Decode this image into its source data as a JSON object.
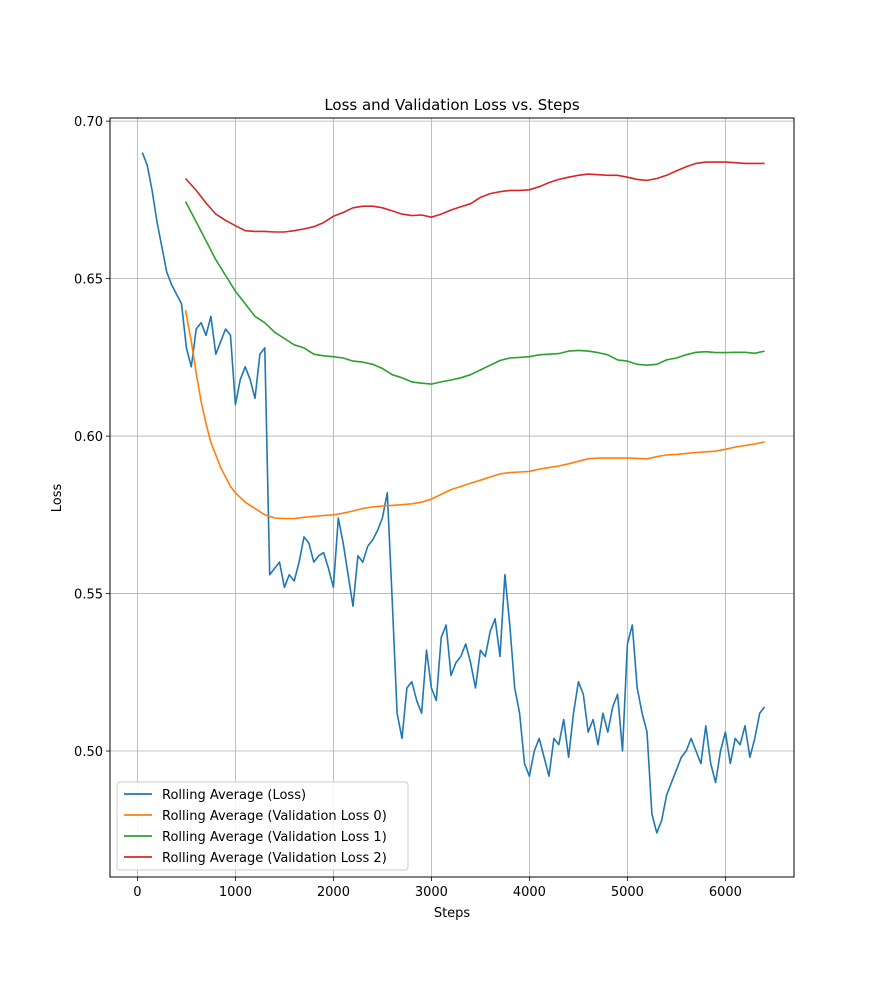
{
  "chart_data": {
    "type": "line",
    "title": "Loss and Validation Loss vs. Steps",
    "xlabel": "Steps",
    "ylabel": "Loss",
    "xlim": [
      -280,
      6700
    ],
    "ylim": [
      0.46,
      0.701
    ],
    "xticks": [
      0,
      1000,
      2000,
      3000,
      4000,
      5000,
      6000
    ],
    "xtick_labels": [
      "0",
      "1000",
      "2000",
      "3000",
      "4000",
      "5000",
      "6000"
    ],
    "yticks": [
      0.5,
      0.55,
      0.6,
      0.65,
      0.7
    ],
    "ytick_labels": [
      "0.50",
      "0.55",
      "0.60",
      "0.65",
      "0.70"
    ],
    "grid": true,
    "legend_position": "lower-left",
    "series": [
      {
        "name": "Rolling Average (Loss)",
        "color": "#1f77b4",
        "x": [
          50,
          100,
          150,
          200,
          250,
          300,
          350,
          400,
          450,
          500,
          550,
          600,
          650,
          700,
          750,
          800,
          850,
          900,
          950,
          1000,
          1050,
          1100,
          1150,
          1200,
          1250,
          1300,
          1350,
          1400,
          1450,
          1500,
          1550,
          1600,
          1650,
          1700,
          1750,
          1800,
          1850,
          1900,
          1950,
          2000,
          2050,
          2100,
          2150,
          2200,
          2250,
          2300,
          2350,
          2400,
          2450,
          2500,
          2550,
          2600,
          2650,
          2700,
          2750,
          2800,
          2850,
          2900,
          2950,
          3000,
          3050,
          3100,
          3150,
          3200,
          3250,
          3300,
          3350,
          3400,
          3450,
          3500,
          3550,
          3600,
          3650,
          3700,
          3750,
          3800,
          3850,
          3900,
          3950,
          4000,
          4050,
          4100,
          4150,
          4200,
          4250,
          4300,
          4350,
          4400,
          4450,
          4500,
          4550,
          4600,
          4650,
          4700,
          4750,
          4800,
          4850,
          4900,
          4950,
          5000,
          5050,
          5100,
          5150,
          5200,
          5250,
          5300,
          5350,
          5400,
          5450,
          5500,
          5550,
          5600,
          5650,
          5700,
          5750,
          5800,
          5850,
          5900,
          5950,
          6000,
          6050,
          6100,
          6150,
          6200,
          6250,
          6300,
          6350,
          6400
        ],
        "y": [
          0.69,
          0.686,
          0.678,
          0.668,
          0.66,
          0.652,
          0.648,
          0.645,
          0.642,
          0.628,
          0.622,
          0.634,
          0.636,
          0.632,
          0.638,
          0.626,
          0.63,
          0.634,
          0.632,
          0.61,
          0.618,
          0.622,
          0.618,
          0.612,
          0.626,
          0.628,
          0.556,
          0.558,
          0.56,
          0.552,
          0.556,
          0.554,
          0.56,
          0.568,
          0.566,
          0.56,
          0.562,
          0.563,
          0.558,
          0.552,
          0.574,
          0.566,
          0.556,
          0.546,
          0.562,
          0.56,
          0.565,
          0.567,
          0.57,
          0.574,
          0.582,
          0.548,
          0.512,
          0.504,
          0.52,
          0.522,
          0.516,
          0.512,
          0.532,
          0.52,
          0.516,
          0.536,
          0.54,
          0.524,
          0.528,
          0.53,
          0.534,
          0.528,
          0.52,
          0.532,
          0.53,
          0.538,
          0.542,
          0.53,
          0.556,
          0.54,
          0.52,
          0.512,
          0.496,
          0.492,
          0.5,
          0.504,
          0.498,
          0.492,
          0.504,
          0.502,
          0.51,
          0.498,
          0.512,
          0.522,
          0.518,
          0.506,
          0.51,
          0.502,
          0.512,
          0.506,
          0.514,
          0.518,
          0.5,
          0.534,
          0.54,
          0.52,
          0.512,
          0.506,
          0.48,
          0.474,
          0.478,
          0.486,
          0.49,
          0.494,
          0.498,
          0.5,
          0.504,
          0.5,
          0.496,
          0.508,
          0.496,
          0.49,
          0.5,
          0.506,
          0.496,
          0.504,
          0.502,
          0.508,
          0.498,
          0.504,
          0.512,
          0.514
        ]
      },
      {
        "name": "Rolling Average (Validation Loss 0)",
        "color": "#ff7f0e",
        "x": [
          490,
          550,
          600,
          650,
          700,
          750,
          800,
          850,
          900,
          950,
          1000,
          1100,
          1200,
          1300,
          1400,
          1500,
          1600,
          1700,
          1800,
          1900,
          2000,
          2100,
          2200,
          2300,
          2400,
          2500,
          2600,
          2700,
          2800,
          2900,
          3000,
          3100,
          3200,
          3300,
          3400,
          3500,
          3600,
          3700,
          3800,
          3900,
          4000,
          4100,
          4200,
          4300,
          4400,
          4500,
          4600,
          4700,
          4800,
          4900,
          5000,
          5100,
          5200,
          5300,
          5400,
          5500,
          5600,
          5700,
          5800,
          5900,
          6000,
          6100,
          6200,
          6300,
          6400
        ],
        "y": [
          0.64,
          0.63,
          0.62,
          0.611,
          0.604,
          0.598,
          0.594,
          0.59,
          0.587,
          0.584,
          0.582,
          0.579,
          0.577,
          0.575,
          0.574,
          0.5738,
          0.5738,
          0.5742,
          0.5745,
          0.5748,
          0.575,
          0.5755,
          0.5762,
          0.577,
          0.5775,
          0.5778,
          0.578,
          0.5782,
          0.5785,
          0.579,
          0.58,
          0.5815,
          0.583,
          0.584,
          0.585,
          0.586,
          0.587,
          0.588,
          0.5884,
          0.5886,
          0.5888,
          0.5895,
          0.59,
          0.5905,
          0.5912,
          0.592,
          0.5928,
          0.593,
          0.593,
          0.593,
          0.593,
          0.5929,
          0.5928,
          0.5935,
          0.594,
          0.5942,
          0.5945,
          0.5948,
          0.595,
          0.5952,
          0.5958,
          0.5965,
          0.597,
          0.5975,
          0.5982
        ]
      },
      {
        "name": "Rolling Average (Validation Loss 1)",
        "color": "#2ca02c",
        "x": [
          490,
          600,
          700,
          800,
          900,
          1000,
          1100,
          1200,
          1300,
          1400,
          1500,
          1600,
          1700,
          1800,
          1900,
          2000,
          2100,
          2200,
          2300,
          2400,
          2500,
          2600,
          2700,
          2800,
          2900,
          3000,
          3100,
          3200,
          3300,
          3400,
          3500,
          3600,
          3700,
          3800,
          3900,
          4000,
          4100,
          4200,
          4300,
          4400,
          4500,
          4600,
          4700,
          4800,
          4900,
          5000,
          5100,
          5200,
          5300,
          5400,
          5500,
          5600,
          5700,
          5800,
          5900,
          6000,
          6100,
          6200,
          6300,
          6400
        ],
        "y": [
          0.6745,
          0.668,
          0.662,
          0.656,
          0.651,
          0.646,
          0.642,
          0.638,
          0.636,
          0.633,
          0.631,
          0.629,
          0.628,
          0.626,
          0.6255,
          0.6252,
          0.6248,
          0.6238,
          0.6235,
          0.6228,
          0.6215,
          0.6195,
          0.6185,
          0.6172,
          0.6168,
          0.6165,
          0.6172,
          0.6178,
          0.6185,
          0.6195,
          0.621,
          0.6225,
          0.624,
          0.6248,
          0.625,
          0.6252,
          0.6258,
          0.626,
          0.6262,
          0.627,
          0.6272,
          0.627,
          0.6265,
          0.6258,
          0.6242,
          0.6238,
          0.6228,
          0.6225,
          0.6228,
          0.6242,
          0.6248,
          0.6258,
          0.6266,
          0.6268,
          0.6265,
          0.6265,
          0.6266,
          0.6266,
          0.6263,
          0.627
        ]
      },
      {
        "name": "Rolling Average (Validation Loss 2)",
        "color": "#d62728",
        "x": [
          490,
          600,
          700,
          800,
          900,
          1000,
          1100,
          1200,
          1300,
          1400,
          1500,
          1600,
          1700,
          1800,
          1900,
          2000,
          2100,
          2200,
          2300,
          2400,
          2500,
          2600,
          2700,
          2800,
          2900,
          3000,
          3100,
          3200,
          3300,
          3400,
          3500,
          3600,
          3700,
          3800,
          3900,
          4000,
          4100,
          4200,
          4300,
          4400,
          4500,
          4600,
          4700,
          4800,
          4900,
          5000,
          5100,
          5200,
          5300,
          5400,
          5500,
          5600,
          5700,
          5800,
          5900,
          6000,
          6100,
          6200,
          6300,
          6400
        ],
        "y": [
          0.6818,
          0.678,
          0.674,
          0.6705,
          0.6685,
          0.6668,
          0.6652,
          0.665,
          0.665,
          0.6648,
          0.6648,
          0.6652,
          0.6658,
          0.6665,
          0.6678,
          0.6698,
          0.671,
          0.6725,
          0.673,
          0.673,
          0.6725,
          0.6715,
          0.6705,
          0.67,
          0.6702,
          0.6695,
          0.6705,
          0.6718,
          0.6728,
          0.6738,
          0.6758,
          0.677,
          0.6776,
          0.678,
          0.678,
          0.6782,
          0.6792,
          0.6805,
          0.6815,
          0.6822,
          0.6828,
          0.6832,
          0.683,
          0.6828,
          0.6828,
          0.6822,
          0.6815,
          0.6812,
          0.6818,
          0.6828,
          0.6842,
          0.6855,
          0.6866,
          0.687,
          0.687,
          0.687,
          0.6868,
          0.6866,
          0.6866,
          0.6866
        ]
      }
    ]
  }
}
